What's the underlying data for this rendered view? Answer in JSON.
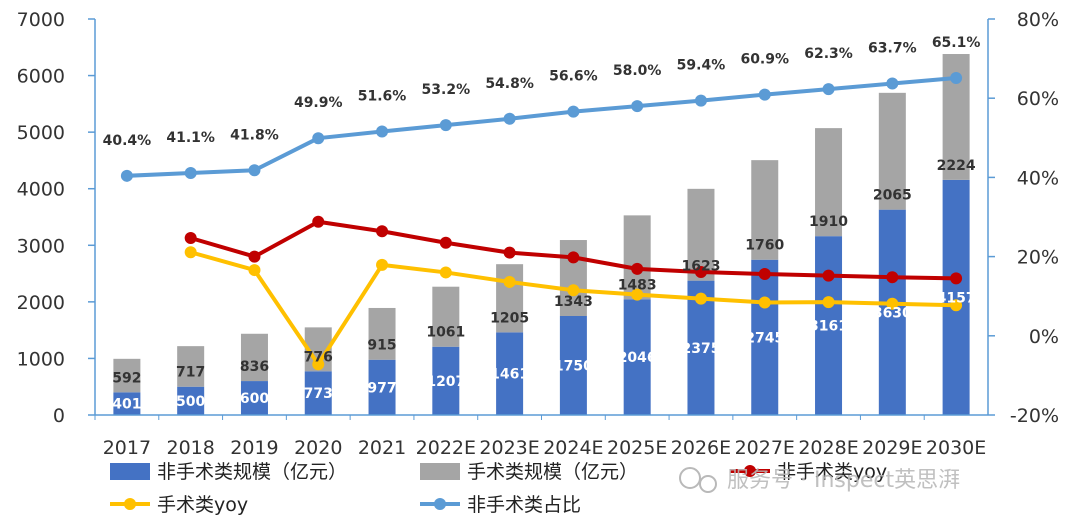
{
  "chart_data": {
    "type": "bar",
    "stacked": true,
    "categories": [
      "2017",
      "2018",
      "2019",
      "2020",
      "2021",
      "2022E",
      "2023E",
      "2024E",
      "2025E",
      "2026E",
      "2027E",
      "2028E",
      "2029E",
      "2030E"
    ],
    "series": [
      {
        "name": "非手术类规模（亿元）",
        "kind": "bar",
        "axis": "left",
        "color": "#4472c4",
        "values": [
          401,
          500,
          600,
          773,
          977,
          1207,
          1461,
          1750,
          2046,
          2375,
          2745,
          3161,
          3630,
          4157
        ]
      },
      {
        "name": "手术类规模（亿元）",
        "kind": "bar",
        "axis": "left",
        "color": "#a5a5a5",
        "values": [
          592,
          717,
          836,
          776,
          915,
          1061,
          1205,
          1343,
          1483,
          1623,
          1760,
          1910,
          2065,
          2224
        ]
      },
      {
        "name": "非手术类yoy",
        "kind": "line",
        "axis": "right",
        "color": "#c00000",
        "values": [
          null,
          24.7,
          20.0,
          28.8,
          26.4,
          23.5,
          21.0,
          19.8,
          16.9,
          16.1,
          15.6,
          15.2,
          14.8,
          14.5
        ]
      },
      {
        "name": "手术类yoy",
        "kind": "line",
        "axis": "right",
        "color": "#ffc000",
        "values": [
          null,
          21.1,
          16.6,
          -7.2,
          17.9,
          16.0,
          13.6,
          11.5,
          10.4,
          9.4,
          8.4,
          8.5,
          8.1,
          7.7
        ]
      },
      {
        "name": "非手术类占比",
        "kind": "line",
        "axis": "right",
        "color": "#5b9bd5",
        "values": [
          40.4,
          41.1,
          41.8,
          49.9,
          51.6,
          53.2,
          54.8,
          56.6,
          58.0,
          59.4,
          60.9,
          62.3,
          63.7,
          65.1
        ],
        "labels": [
          "40.4%",
          "41.1%",
          "41.8%",
          "49.9%",
          "51.6%",
          "53.2%",
          "54.8%",
          "56.6%",
          "58.0%",
          "59.4%",
          "60.9%",
          "62.3%",
          "63.7%",
          "65.1%"
        ]
      }
    ],
    "ylim": [
      0,
      7000
    ],
    "yticks": [
      "0",
      "1000",
      "2000",
      "3000",
      "4000",
      "5000",
      "6000",
      "7000"
    ],
    "y2lim": [
      -20,
      80
    ],
    "y2ticks": [
      "-20%",
      "0%",
      "20%",
      "40%",
      "60%",
      "80%"
    ],
    "legend_position": "bottom"
  },
  "watermark": "服务号 · Inspect英思湃",
  "colors": {
    "axis": "#5b9bd5"
  }
}
